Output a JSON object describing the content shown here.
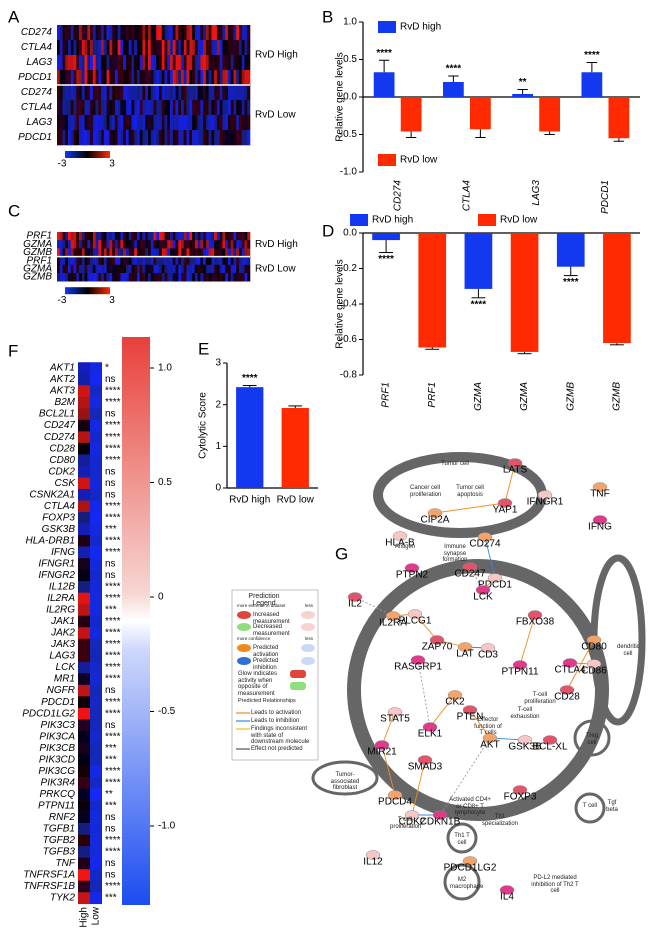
{
  "panel_labels": [
    "A",
    "B",
    "C",
    "D",
    "E",
    "F",
    "G"
  ],
  "heatmap_a": {
    "genes": [
      "CD274",
      "CTLA4",
      "LAG3",
      "PDCD1",
      "CD274",
      "CTLA4",
      "LAG3",
      "PDCD1"
    ],
    "groups": [
      "RvD High",
      "RvD  Low"
    ],
    "scale": [
      "-3",
      "3"
    ]
  },
  "heatmap_c": {
    "genes": [
      "PRF1",
      "GZMA",
      "GZMB",
      "PRF1",
      "GZMA",
      "GZMB"
    ],
    "groups": [
      "RvD High",
      "RvD  Low"
    ],
    "scale": [
      "-3",
      "3"
    ]
  },
  "chart_data": [
    {
      "type": "bar",
      "y_label": "Relative gene levels",
      "categories": [
        "CD274",
        "CTLA4",
        "LAG3",
        "PDCD1"
      ],
      "series": [
        {
          "name": "RvD high",
          "color": "#1238f0",
          "values": [
            0.33,
            0.2,
            0.04,
            0.33
          ],
          "errors": [
            0.16,
            0.08,
            0.06,
            0.13
          ],
          "significance": [
            "****",
            "****",
            "**",
            "****"
          ]
        },
        {
          "name": "RvD low",
          "color": "#ff2a00",
          "values": [
            -0.46,
            -0.43,
            -0.46,
            -0.55
          ],
          "errors": [
            0.08,
            0.11,
            0.04,
            0.04
          ]
        }
      ],
      "ylim": [
        -1,
        1
      ],
      "yticks": [
        {
          "value": 1,
          "label": "1.0"
        },
        0.5,
        {
          "value": 0,
          "label": "0.0"
        },
        -0.5,
        {
          "value": -1,
          "label": "-1.0"
        }
      ]
    },
    {
      "type": "bar",
      "y_label": "Relative gene levels",
      "categories": [
        "PRF1",
        "PRF1",
        "GZMA",
        "GZMA",
        "GZMB",
        "GZMB"
      ],
      "series": [
        {
          "name": "RvD high",
          "color": "#1238f0",
          "values": [
            -0.04,
            null,
            -0.315,
            null,
            -0.19,
            null
          ],
          "errors": [
            0.07,
            null,
            0.05,
            null,
            0.05,
            null
          ],
          "significance": [
            "****",
            null,
            "****",
            null,
            "****",
            null
          ]
        },
        {
          "name": "RvD low",
          "color": "#ff2a00",
          "values": [
            null,
            -0.645,
            null,
            -0.67,
            null,
            -0.62
          ],
          "errors": [
            null,
            0.01,
            null,
            0.01,
            null,
            0.01
          ]
        }
      ],
      "ylim": [
        -0.8,
        0
      ],
      "yticks": [
        {
          "value": 0,
          "label": "0.0"
        },
        -0.2,
        -0.4,
        -0.6,
        -0.8
      ]
    },
    {
      "type": "bar",
      "y_label": "Cytolytic Score",
      "categories": [
        "RvD high",
        "RvD low"
      ],
      "values": [
        2.42,
        1.92
      ],
      "errors": [
        0.04,
        0.05
      ],
      "colors": [
        "#1238f0",
        "#ff2a00"
      ],
      "significance": [
        "****",
        null
      ],
      "ylim": [
        0,
        3
      ],
      "yticks": [
        0,
        1,
        2,
        3
      ]
    }
  ],
  "heatmap_f": {
    "genes": [
      "AKT1",
      "AKT2",
      "AKT3",
      "B2M",
      "BCL2L1",
      "CD247",
      "CD274",
      "CD28",
      "CD80",
      "CDK2",
      "CSK",
      "CSNK2A1",
      "CTLA4",
      "FOXP3",
      "GSK3B",
      "HLA-DRB1",
      "IFNG",
      "IFNGR1",
      "IFNGR2",
      "IL12B",
      "IL2RA",
      "IL2RG",
      "JAK1",
      "JAK2",
      "JAK3",
      "LAG3",
      "LCK",
      "MR1",
      "NGFR",
      "PDCD1",
      "PDCD1LG2",
      "PIK3C3",
      "PIK3CA",
      "PIK3CB",
      "PIK3CD",
      "PIK3CG",
      "PIK3R4",
      "PRKCQ",
      "PTPN11",
      "RNF2",
      "TGFB1",
      "TGFB2",
      "TGFB3",
      "TNF",
      "TNFRSF1A",
      "TNFRSF1B",
      "TYK2"
    ],
    "significance": [
      "*",
      "ns",
      "****",
      "****",
      "ns",
      "****",
      "****",
      "****",
      "****",
      "ns",
      "ns",
      "ns",
      "****",
      "****",
      "***",
      "****",
      "****",
      "ns",
      "ns",
      "****",
      "****",
      "***",
      "****",
      "****",
      "****",
      "****",
      "****",
      "****",
      "ns",
      "****",
      "****",
      "ns",
      "****",
      "***",
      "***",
      "****",
      "****",
      "**",
      "***",
      "ns",
      "ns",
      "****",
      "****",
      "ns",
      "ns",
      "****",
      "***"
    ],
    "columns": [
      "RvD High",
      "RvD Low"
    ],
    "colorbar_ticks": [
      {
        "value": 1,
        "label": "1.0"
      },
      0.5,
      0,
      -0.5,
      {
        "value": -1,
        "label": "-1.0"
      }
    ]
  },
  "network": {
    "nodes": [
      "LATS",
      "TNF",
      "IFNGR1",
      "IFNG",
      "YAP1",
      "CIP2A",
      "HLA-B",
      "PTPN2",
      "CD247",
      "CD274",
      "PDCD1",
      "LCK",
      "IL2",
      "IL2RA",
      "PLCG1",
      "RASGRP1",
      "ZAP70",
      "LAT",
      "CD3",
      "PTPN11",
      "FBXO38",
      "CK2",
      "STAT5",
      "ELK1",
      "PTEN",
      "AKT",
      "GSK3B",
      "MIR21",
      "SMAD3",
      "PDCD4",
      "CDK2",
      "CDKN1B",
      "FOXP3",
      "CD80",
      "CD86",
      "CTLA4",
      "CD28",
      "PDCD1LG2",
      "IL12",
      "IL4",
      "BCL-XL"
    ],
    "processes": [
      "Tumor cell",
      "Cancer cell proliferation",
      "Tumor cell apoptosis",
      "Antigen",
      "Immune synapse formation",
      "Effector function of T cells",
      "T-cell exhaustion",
      "T-cell proliferation",
      "T cell proliferation",
      "Activated CD4+ or CD8+ T lymphocyte",
      "Th1 specialization",
      "Treg cell",
      "dendritic cell",
      "Tumor-associated fibroblast",
      "Th1 T cell",
      "M2 macrophage",
      "T cell",
      "PD-L2 mediated inhibition of Th2 T cell",
      "Tgf beta"
    ],
    "legend": {
      "title": "Prediction Legend",
      "extreme": "more extreme in dataset",
      "less": "less",
      "increased": "Increased measurement",
      "decreased": "Decreased measurement",
      "confidence": "more confidence",
      "less2": "less",
      "activation": "Predicted activation",
      "inhibition": "Predicted inhibition",
      "glow": "Glow indicates activity when opposite of measurement",
      "relationships": "Predicted Relationships",
      "leads_activation": "Leads to activation",
      "leads_inhibition": "Leads to inhibition",
      "inconsistent": "Findings inconsistent with state of downstream molecule",
      "not_predicted": "Effect not predicted"
    }
  }
}
